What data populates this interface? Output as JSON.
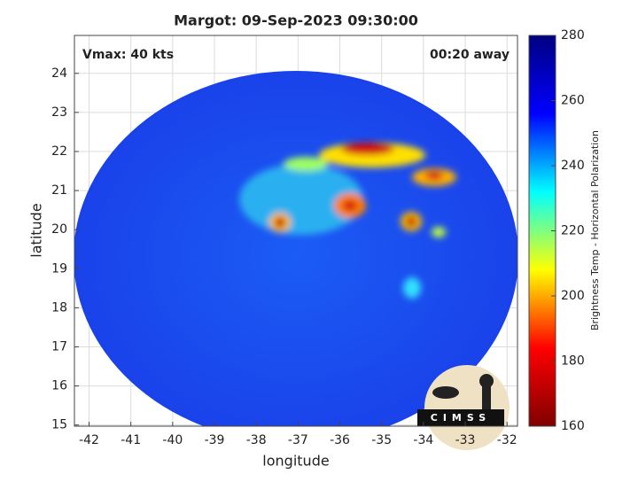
{
  "chart_data": {
    "type": "map",
    "title": "Margot: 09-Sep-2023 09:30:00",
    "annotations": [
      "Vmax: 40 kts",
      "00:20 away"
    ],
    "x_label": "longitude",
    "y_label": "latitude",
    "xlim": [
      -42.35,
      -31.75
    ],
    "ylim": [
      14.97,
      24.97
    ],
    "xticks": [
      -42,
      -41,
      -40,
      -39,
      -38,
      -37,
      -36,
      -35,
      -34,
      -33,
      -32
    ],
    "yticks": [
      15,
      16,
      17,
      18,
      19,
      20,
      21,
      22,
      23,
      24
    ],
    "grid": true,
    "colorbar": {
      "label": "Brightness Temp - Horizontal Polarization",
      "lim": [
        160,
        280
      ],
      "ticks": [
        160,
        180,
        200,
        220,
        240,
        260,
        280
      ],
      "colormap": [
        "#800000",
        "#ff0000",
        "#ffff00",
        "#00ffff",
        "#0000ff",
        "#000080"
      ]
    },
    "logo": "CIMSS"
  }
}
